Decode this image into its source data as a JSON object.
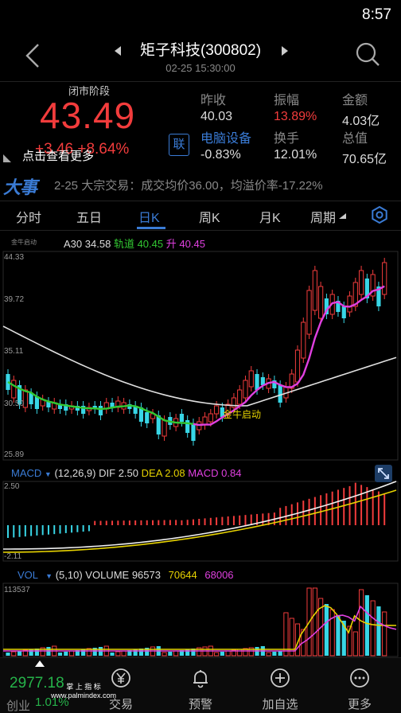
{
  "status": {
    "time": "8:57"
  },
  "header": {
    "title": "矩子科技(300802)",
    "quote_time": "02-25 15:30:00"
  },
  "quote": {
    "session": "闭市阶段",
    "price": "43.49",
    "change": "+3.46",
    "change_pct": "+8.64%",
    "more_tip": "点击查看更多",
    "margin_badge": "联",
    "fields": [
      {
        "label": "昨收",
        "value": "40.03"
      },
      {
        "label": "振幅",
        "value": "13.89%"
      },
      {
        "label": "金额",
        "value": "4.03亿"
      },
      {
        "label": "电脑设备",
        "value": "-0.83%"
      },
      {
        "label": "换手",
        "value": "12.01%"
      },
      {
        "label": "总值",
        "value": "70.65亿"
      }
    ]
  },
  "news": {
    "logo": "大事",
    "text": "2-25 大宗交易：成交均价36.00，均溢价率-17.22%"
  },
  "tabs": [
    {
      "label": "分时"
    },
    {
      "label": "五日"
    },
    {
      "label": "日K"
    },
    {
      "label": "周K"
    },
    {
      "label": "月K"
    },
    {
      "label": "周期"
    }
  ],
  "main_chart": {
    "indicator": "金牛启动",
    "a30_label": "A30",
    "a30_value": "34.58",
    "track_label": "轨道",
    "track_value": "40.45",
    "rise_label": "升",
    "rise_value": "40.45",
    "annotation": "金牛启动",
    "y_labels": [
      "44.33",
      "39.72",
      "35.11",
      "30.50",
      "25.89"
    ]
  },
  "macd": {
    "name": "MACD",
    "params": "(12,26,9)",
    "dif_label": "DIF",
    "dif_value": "2.50",
    "dea_label": "DEA",
    "dea_value": "2.08",
    "macd_label": "MACD",
    "macd_value": "0.84",
    "y_top": "2.50",
    "y_bottom": "-2.11"
  },
  "volume": {
    "name": "VOL",
    "params": "(5,10)",
    "vol_label": "VOLUME",
    "vol_value": "96573",
    "ma5_value": "70644",
    "ma10_value": "68006",
    "y_top": "113537"
  },
  "nav": {
    "index_value": "2977.18",
    "index_change": "1.01%",
    "index_name": "创业",
    "items": [
      {
        "label": "交易",
        "icon": "yuan-icon"
      },
      {
        "label": "预警",
        "icon": "bell-icon"
      },
      {
        "label": "加自选",
        "icon": "add-icon"
      },
      {
        "label": "更多",
        "icon": "more-icon"
      }
    ]
  },
  "watermark": {
    "line1": "掌 上 指 标",
    "line2": "www.palmindex.com"
  },
  "colors": {
    "up": "#f23c3c",
    "down": "#38d6e6",
    "accent": "#3a7bd5",
    "green": "#26b34a"
  }
}
